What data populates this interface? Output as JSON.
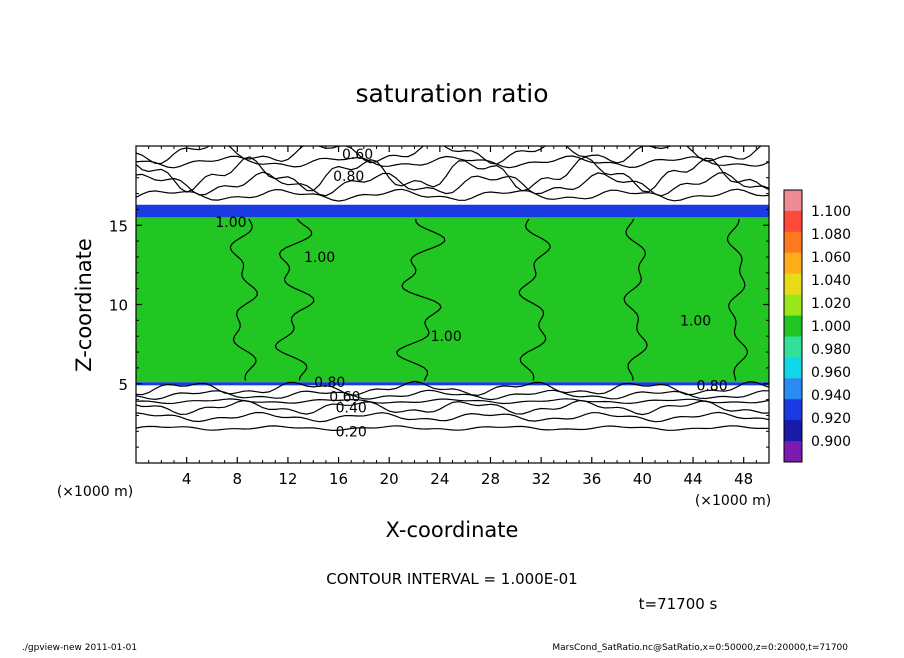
{
  "chart_data": {
    "type": "heatmap",
    "title": "saturation ratio",
    "xlabel": "X-coordinate",
    "ylabel": "Z-coordinate",
    "x_unit_label": "(×1000 m)",
    "y_unit_label": "(×1000 m)",
    "x_ticks": [
      "4",
      "8",
      "12",
      "16",
      "20",
      "24",
      "28",
      "32",
      "36",
      "40",
      "44",
      "48"
    ],
    "y_ticks": [
      "5",
      "10",
      "15"
    ],
    "xlim": [
      0,
      50
    ],
    "ylim": [
      0,
      20
    ],
    "field_bands": [
      {
        "z_from": 0,
        "z_to": 4.9,
        "value": 0.5
      },
      {
        "z_from": 4.9,
        "z_to": 5.1,
        "value": 0.93
      },
      {
        "z_from": 5.1,
        "z_to": 15.5,
        "value": 1.0
      },
      {
        "z_from": 15.5,
        "z_to": 16.3,
        "value": 0.93
      },
      {
        "z_from": 16.3,
        "z_to": 20,
        "value": 0.5
      }
    ],
    "contour_labels": [
      {
        "text": "0.60",
        "x": 17.5,
        "z": 19.5
      },
      {
        "text": "0.80",
        "x": 16.8,
        "z": 18.1
      },
      {
        "text": "1.00",
        "x": 7.5,
        "z": 15.2
      },
      {
        "text": "1.00",
        "x": 14.5,
        "z": 13.0
      },
      {
        "text": "1.00",
        "x": 24.5,
        "z": 8.0
      },
      {
        "text": "1.00",
        "x": 44.2,
        "z": 9.0
      },
      {
        "text": "0.80",
        "x": 15.3,
        "z": 5.1
      },
      {
        "text": "0.80",
        "x": 45.5,
        "z": 4.9
      },
      {
        "text": "0.60",
        "x": 16.5,
        "z": 4.2
      },
      {
        "text": "0.40",
        "x": 17.0,
        "z": 3.5
      },
      {
        "text": "0.20",
        "x": 17.0,
        "z": 2.0
      }
    ],
    "colorbar": {
      "ticks": [
        "1.100",
        "1.080",
        "1.060",
        "1.040",
        "1.020",
        "1.000",
        "0.980",
        "0.960",
        "0.940",
        "0.920",
        "0.900"
      ],
      "colors": [
        "#f08a94",
        "#ff4a3a",
        "#ff7a1e",
        "#ffae1a",
        "#e8dc1a",
        "#9ae81a",
        "#22c622",
        "#32e09a",
        "#10d8e8",
        "#2a8cf2",
        "#1a3ae2",
        "#1a1aa8",
        "#7a1ab0"
      ]
    }
  },
  "annotations": {
    "contour_interval": "CONTOUR INTERVAL = 1.000E-01",
    "time": "t=71700 s"
  },
  "footer": {
    "left": "./gpview-new   2011-01-01",
    "right": "MarsCond_SatRatio.nc@SatRatio,x=0:50000,z=0:20000,t=71700"
  }
}
